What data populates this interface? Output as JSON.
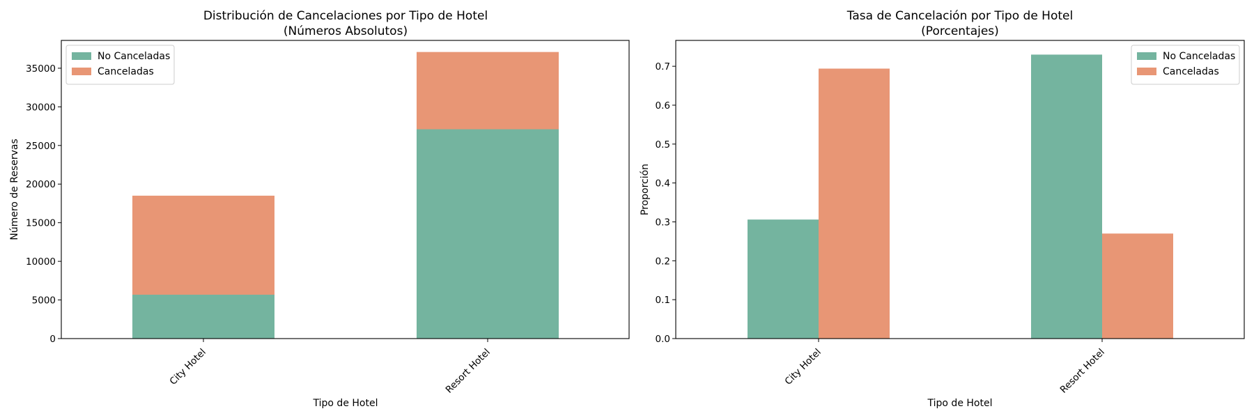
{
  "colors": {
    "no_canceladas": "#74b49f",
    "canceladas": "#e89675"
  },
  "chart_data": [
    {
      "type": "bar",
      "stacked": true,
      "title_line1": "Distribución de Cancelaciones por Tipo de Hotel",
      "title_line2": "(Números Absolutos)",
      "xlabel": "Tipo de Hotel",
      "ylabel": "Número de Reservas",
      "categories": [
        "City Hotel",
        "Resort Hotel"
      ],
      "series": [
        {
          "name": "No Canceladas",
          "values": [
            5680,
            27100
          ]
        },
        {
          "name": "Canceladas",
          "values": [
            12820,
            10000
          ]
        }
      ],
      "ylim": [
        0,
        38600
      ],
      "yticks": [
        0,
        5000,
        10000,
        15000,
        20000,
        25000,
        30000,
        35000
      ],
      "ytick_labels": [
        "0",
        "5000",
        "10000",
        "15000",
        "20000",
        "25000",
        "30000",
        "35000"
      ],
      "legend_position": "upper left",
      "grid": false
    },
    {
      "type": "bar",
      "stacked": false,
      "title_line1": "Tasa de Cancelación por Tipo de Hotel",
      "title_line2": "(Porcentajes)",
      "xlabel": "Tipo de Hotel",
      "ylabel": "Proporción",
      "categories": [
        "City Hotel",
        "Resort Hotel"
      ],
      "series": [
        {
          "name": "No Canceladas",
          "values": [
            0.306,
            0.73
          ]
        },
        {
          "name": "Canceladas",
          "values": [
            0.694,
            0.27
          ]
        }
      ],
      "ylim": [
        0,
        0.7665
      ],
      "yticks": [
        0,
        0.1,
        0.2,
        0.3,
        0.4,
        0.5,
        0.6,
        0.7
      ],
      "ytick_labels": [
        "0.0",
        "0.1",
        "0.2",
        "0.3",
        "0.4",
        "0.5",
        "0.6",
        "0.7"
      ],
      "legend_position": "upper right",
      "grid": false
    }
  ]
}
